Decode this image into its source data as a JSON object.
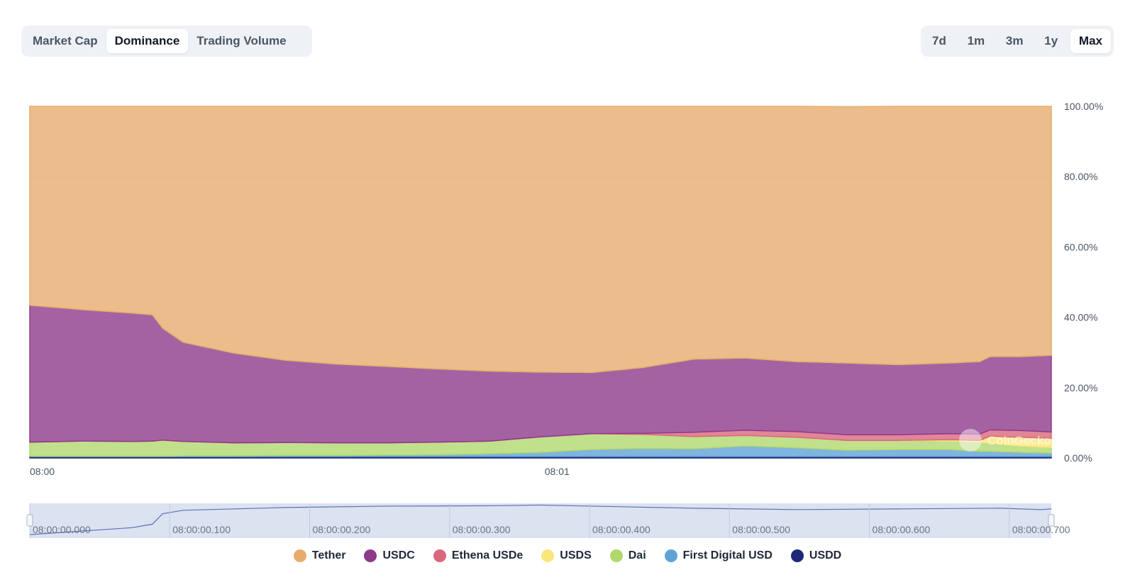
{
  "tabs": {
    "metric": [
      {
        "label": "Market Cap",
        "active": false
      },
      {
        "label": "Dominance",
        "active": true
      },
      {
        "label": "Trading Volume",
        "active": false
      }
    ],
    "range": [
      {
        "label": "7d",
        "active": false
      },
      {
        "label": "1m",
        "active": false
      },
      {
        "label": "3m",
        "active": false
      },
      {
        "label": "1y",
        "active": false
      },
      {
        "label": "Max",
        "active": true
      }
    ]
  },
  "watermark": "CoinGecko",
  "chart_data": {
    "type": "area",
    "stacked": true,
    "percent": true,
    "x_tick_labels": [
      "08:00",
      "08:01"
    ],
    "y_tick_labels": [
      "0.00%",
      "20.00%",
      "40.00%",
      "60.00%",
      "80.00%",
      "100.00%"
    ],
    "ylim": [
      0,
      100
    ],
    "grid": true,
    "legend_position": "bottom",
    "x": [
      0,
      0.05,
      0.1,
      0.12,
      0.13,
      0.15,
      0.2,
      0.25,
      0.3,
      0.35,
      0.4,
      0.45,
      0.5,
      0.55,
      0.6,
      0.65,
      0.7,
      0.75,
      0.8,
      0.85,
      0.9,
      0.93,
      0.94,
      0.97,
      1.0
    ],
    "series": [
      {
        "name": "USDD",
        "color": "#1e2a78",
        "values": [
          0.4,
          0.4,
          0.4,
          0.4,
          0.4,
          0.4,
          0.4,
          0.4,
          0.4,
          0.4,
          0.4,
          0.4,
          0.4,
          0.4,
          0.4,
          0.4,
          0.4,
          0.4,
          0.4,
          0.4,
          0.4,
          0.4,
          0.4,
          0.4,
          0.4
        ]
      },
      {
        "name": "First Digital USD",
        "color": "#5fa3d6",
        "values": [
          0.1,
          0.1,
          0.1,
          0.1,
          0.1,
          0.2,
          0.2,
          0.3,
          0.3,
          0.4,
          0.5,
          0.8,
          1.2,
          2.0,
          2.3,
          2.2,
          3.0,
          2.5,
          1.8,
          2.0,
          2.0,
          1.5,
          1.5,
          1.2,
          1.0
        ]
      },
      {
        "name": "Dai",
        "color": "#b0d86e",
        "values": [
          4.0,
          4.3,
          4.2,
          4.3,
          4.6,
          4.1,
          3.7,
          3.7,
          3.6,
          3.5,
          3.6,
          3.6,
          4.4,
          4.5,
          4.0,
          3.5,
          3.0,
          3.0,
          2.8,
          2.6,
          2.5,
          2.6,
          2.3,
          1.8,
          1.6
        ]
      },
      {
        "name": "USDS",
        "color": "#fbe67a",
        "values": [
          0,
          0,
          0,
          0,
          0,
          0,
          0,
          0,
          0,
          0,
          0,
          0,
          0,
          0,
          0,
          0,
          0,
          0,
          0,
          0,
          0.3,
          0.5,
          2.0,
          2.5,
          2.6
        ]
      },
      {
        "name": "Ethena USDe",
        "color": "#d9687d",
        "values": [
          0,
          0,
          0,
          0,
          0,
          0,
          0,
          0,
          0,
          0,
          0,
          0,
          0,
          0,
          0.3,
          1.2,
          1.5,
          1.6,
          1.6,
          1.6,
          1.7,
          1.8,
          1.8,
          1.9,
          1.8
        ]
      },
      {
        "name": "USDC",
        "color": "#8e3b8c",
        "values": [
          38.9,
          37.4,
          36.5,
          35.9,
          31.8,
          28.2,
          25.5,
          23.4,
          22.4,
          21.7,
          20.8,
          19.9,
          18.4,
          17.4,
          18.7,
          20.8,
          20.5,
          19.9,
          20.4,
          19.9,
          20.1,
          20.6,
          20.8,
          21.0,
          21.8
        ]
      },
      {
        "name": "Tether",
        "color": "#e7ac6d",
        "values": [
          56.6,
          57.8,
          58.8,
          59.3,
          63.1,
          67.1,
          70.2,
          72.2,
          73.3,
          74.0,
          74.7,
          75.3,
          75.6,
          75.7,
          74.3,
          71.9,
          71.6,
          72.6,
          72.9,
          73.5,
          73.0,
          72.6,
          71.2,
          71.2,
          70.8
        ]
      }
    ],
    "navigator": {
      "x_tick_labels": [
        "08:00:00.000",
        "08:00:00.100",
        "08:00:00.200",
        "08:00:00.300",
        "08:00:00.400",
        "08:00:00.500",
        "08:00:00.600",
        "08:00:00.700"
      ],
      "x": [
        0,
        0.1,
        0.12,
        0.13,
        0.15,
        0.25,
        0.35,
        0.45,
        0.5,
        0.55,
        0.65,
        0.75,
        0.85,
        0.95,
        0.99,
        1.0
      ],
      "values": [
        10,
        30,
        40,
        70,
        80,
        88,
        92,
        93,
        95,
        92,
        86,
        82,
        84,
        86,
        82,
        84
      ]
    }
  }
}
